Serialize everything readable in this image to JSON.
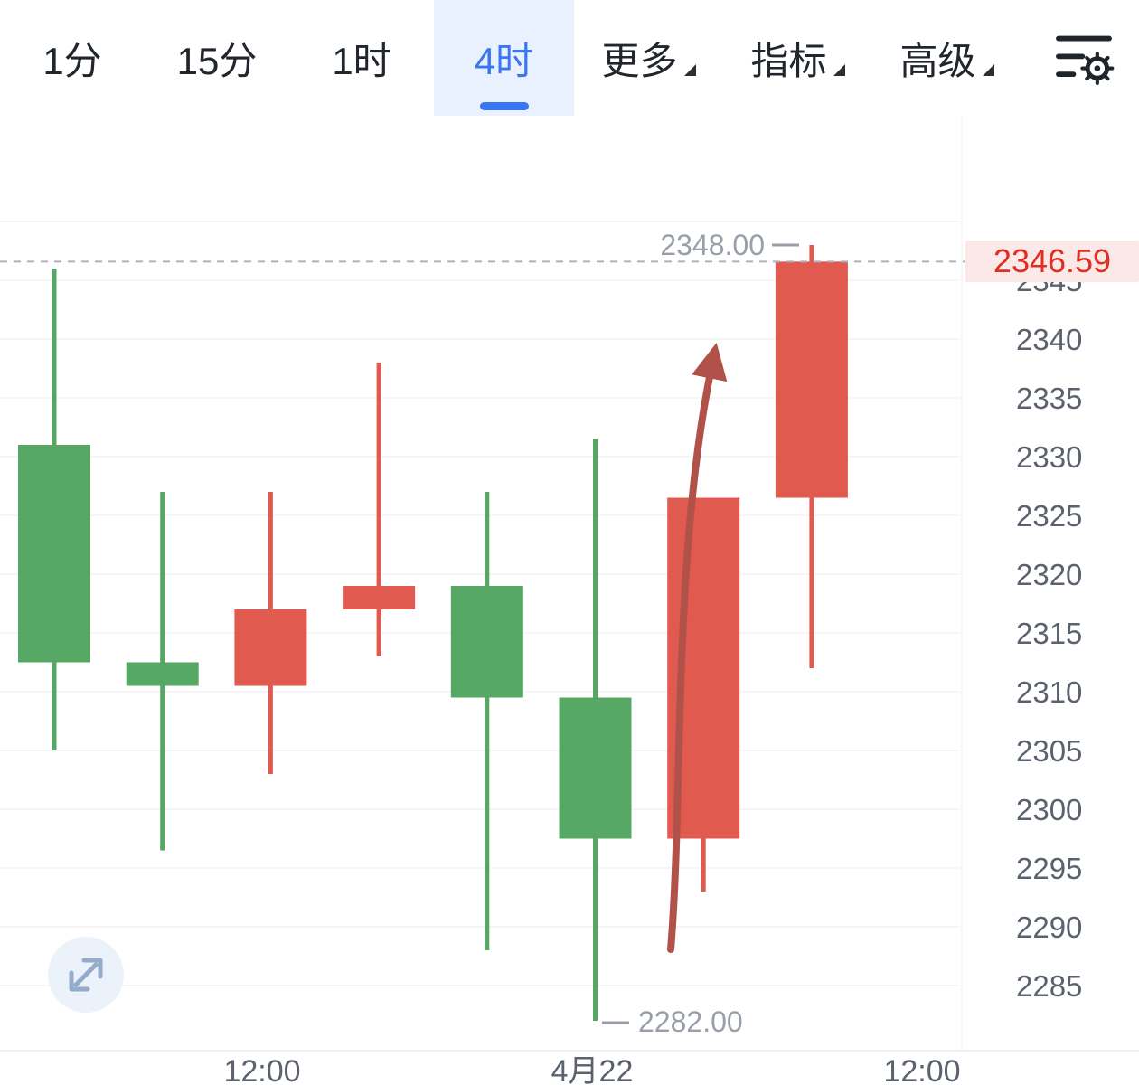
{
  "toolbar": {
    "tabs": [
      {
        "label": "1分",
        "active": false
      },
      {
        "label": "15分",
        "active": false
      },
      {
        "label": "1时",
        "active": false
      },
      {
        "label": "4时",
        "active": true
      }
    ],
    "menus": [
      {
        "label": "更多"
      },
      {
        "label": "指标"
      },
      {
        "label": "高级"
      }
    ],
    "accent": {
      "active_tab": "#3a76f0",
      "active_tab_bg": "#e8f1fd"
    }
  },
  "chart_data": {
    "type": "candlestick",
    "interval": "4时",
    "x_labels": [
      "12:00",
      "4月22",
      "12:00"
    ],
    "y_ticks": [
      2345,
      2340,
      2335,
      2330,
      2325,
      2320,
      2315,
      2310,
      2305,
      2300,
      2295,
      2290,
      2285
    ],
    "y_range": [
      2282,
      2348
    ],
    "grid": "horizontal",
    "high_label": "2348.00",
    "low_label": "2282.00",
    "current_price": "2346.59",
    "colors": {
      "up": "#e15a50",
      "down": "#55a763",
      "annotation": "#b0514a",
      "current_line": "#adb2ba"
    },
    "candles": [
      {
        "open": 2331.0,
        "high": 2346.0,
        "low": 2305.0,
        "close": 2312.5
      },
      {
        "open": 2312.5,
        "high": 2327.0,
        "low": 2296.5,
        "close": 2310.5
      },
      {
        "open": 2310.5,
        "high": 2327.0,
        "low": 2303.0,
        "close": 2317.0
      },
      {
        "open": 2317.0,
        "high": 2338.0,
        "low": 2313.0,
        "close": 2319.0
      },
      {
        "open": 2319.0,
        "high": 2327.0,
        "low": 2288.0,
        "close": 2309.5
      },
      {
        "open": 2309.5,
        "high": 2331.5,
        "low": 2282.0,
        "close": 2297.5
      },
      {
        "open": 2297.5,
        "high": 2326.5,
        "low": 2293.0,
        "close": 2326.5
      },
      {
        "open": 2326.5,
        "high": 2348.0,
        "low": 2312.0,
        "close": 2346.59
      }
    ],
    "annotations": [
      {
        "type": "arrow",
        "direction": "up"
      }
    ]
  }
}
